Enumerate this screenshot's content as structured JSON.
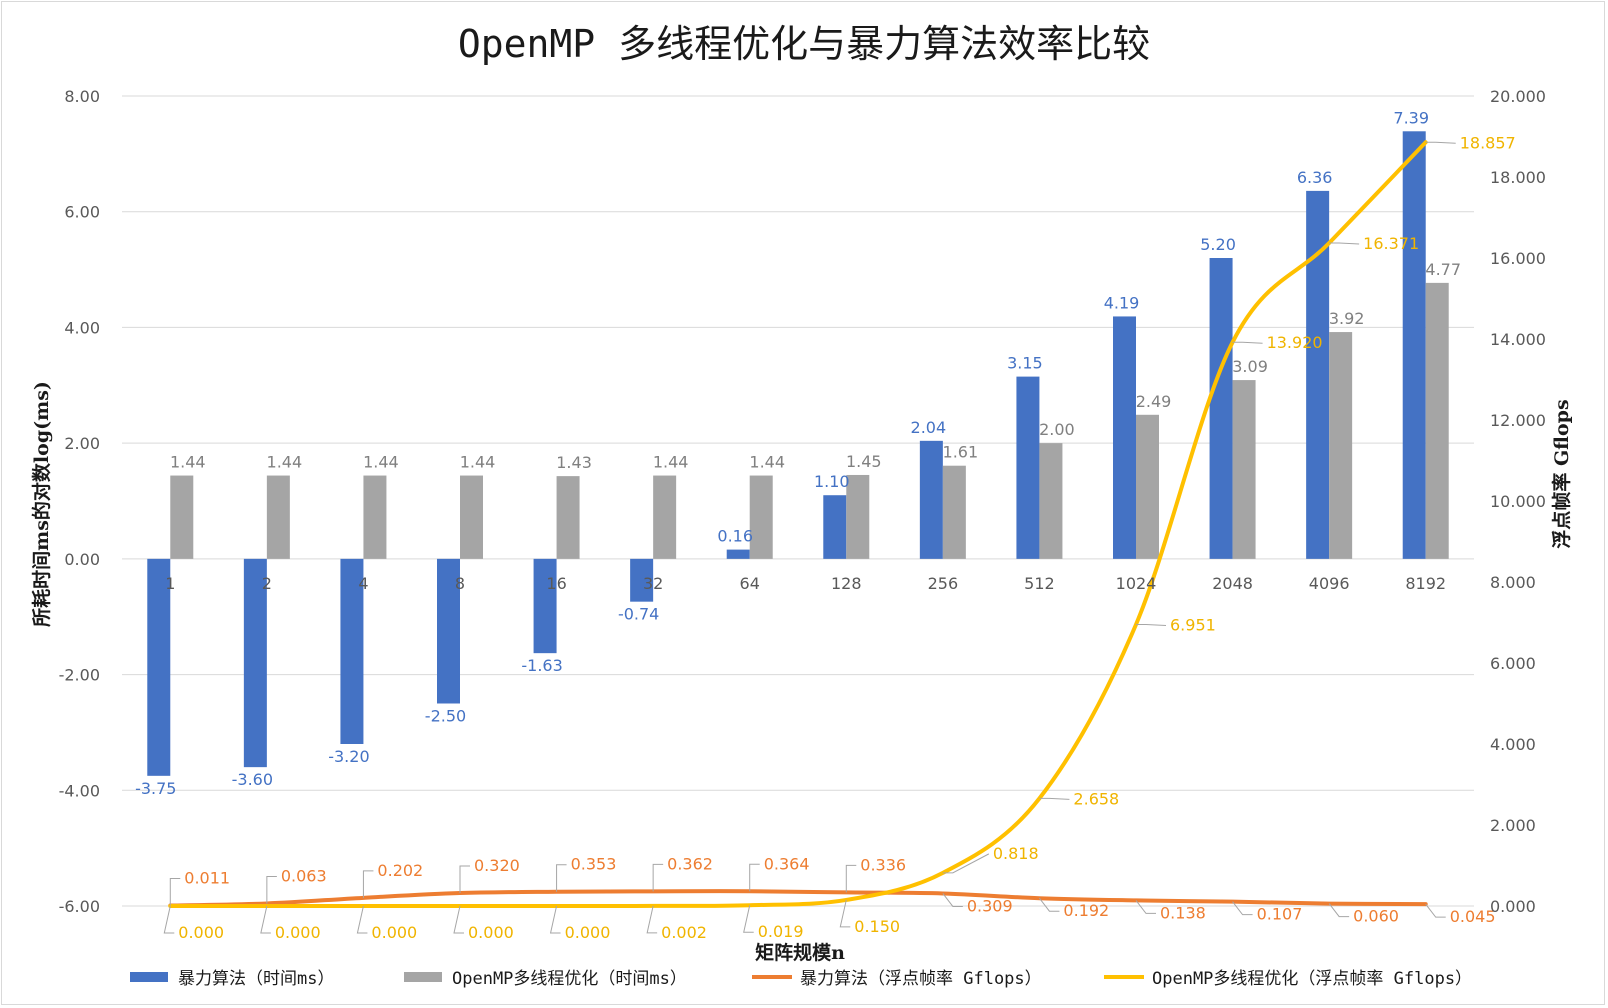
{
  "chart_data": {
    "type": "bar",
    "title": "OpenMP 多线程优化与暴力算法效率比较",
    "xlabel": "矩阵规模n",
    "ylabel": "所耗时间ms的对数log(ms)",
    "y2label": "浮点帧率 Gflops",
    "categories": [
      "1",
      "2",
      "4",
      "8",
      "16",
      "32",
      "64",
      "128",
      "256",
      "512",
      "1024",
      "2048",
      "4096",
      "8192"
    ],
    "ylim": [
      -6,
      8
    ],
    "y2lim": [
      0,
      20
    ],
    "yticks": [
      "8.00",
      "6.00",
      "4.00",
      "2.00",
      "0.00",
      "-2.00",
      "-4.00",
      "-6.00"
    ],
    "y2ticks": [
      "20.000",
      "18.000",
      "16.000",
      "14.000",
      "12.000",
      "10.000",
      "8.000",
      "6.000",
      "4.000",
      "2.000",
      "0.000"
    ],
    "grid": true,
    "legend_position": "bottom",
    "series": [
      {
        "name": "暴力算法（时间ms）",
        "type": "bar",
        "axis": "left",
        "color": "#4472c4",
        "values": [
          -3.75,
          -3.6,
          -3.2,
          -2.5,
          -1.63,
          -0.74,
          0.16,
          1.1,
          2.04,
          3.15,
          4.19,
          5.2,
          6.36,
          7.39
        ],
        "labels": [
          "-3.75",
          "-3.60",
          "-3.20",
          "-2.50",
          "-1.63",
          "-0.74",
          "0.16",
          "1.10",
          "2.04",
          "3.15",
          "4.19",
          "5.20",
          "6.36",
          "7.39"
        ]
      },
      {
        "name": "OpenMP多线程优化（时间ms）",
        "type": "bar",
        "axis": "left",
        "color": "#a5a5a5",
        "values": [
          1.44,
          1.44,
          1.44,
          1.44,
          1.43,
          1.44,
          1.44,
          1.45,
          1.61,
          2.0,
          2.49,
          3.09,
          3.92,
          4.77
        ],
        "labels": [
          "1.44",
          "1.44",
          "1.44",
          "1.44",
          "1.43",
          "1.44",
          "1.44",
          "1.45",
          "1.61",
          "2.00",
          "2.49",
          "3.09",
          "3.92",
          "4.77"
        ]
      },
      {
        "name": "暴力算法（浮点帧率 Gflops）",
        "type": "line",
        "axis": "right",
        "color": "#ed7d31",
        "values": [
          0.011,
          0.063,
          0.202,
          0.32,
          0.353,
          0.362,
          0.364,
          0.336,
          0.309,
          0.192,
          0.138,
          0.107,
          0.06,
          0.045
        ],
        "labels": [
          "0.011",
          "0.063",
          "0.202",
          "0.320",
          "0.353",
          "0.362",
          "0.364",
          "0.336",
          "0.309",
          "0.192",
          "0.138",
          "0.107",
          "0.060",
          "0.045"
        ]
      },
      {
        "name": "OpenMP多线程优化（浮点帧率 Gflops）",
        "type": "line",
        "axis": "right",
        "color": "#ffc000",
        "values": [
          0.0,
          0.0,
          0.0,
          0.0,
          0.0,
          0.002,
          0.019,
          0.15,
          0.818,
          2.658,
          6.951,
          13.92,
          16.371,
          18.857
        ],
        "labels": [
          "0.000",
          "0.000",
          "0.000",
          "0.000",
          "0.000",
          "0.002",
          "0.019",
          "0.150",
          "0.818",
          "2.658",
          "6.951",
          "13.920",
          "16.371",
          "18.857"
        ]
      }
    ]
  }
}
